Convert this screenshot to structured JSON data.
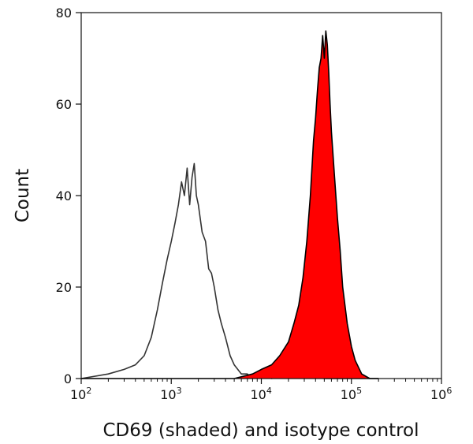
{
  "chart_data": {
    "type": "area",
    "title": "",
    "xlabel": "CD69 (shaded) and isotype control",
    "ylabel": "Count",
    "xscale": "log",
    "xlim": [
      100,
      1000000
    ],
    "ylim": [
      0,
      80
    ],
    "grid": false,
    "x_ticks": [
      {
        "value": 100,
        "base": "10",
        "exp": "2"
      },
      {
        "value": 1000,
        "base": "10",
        "exp": "3"
      },
      {
        "value": 10000,
        "base": "10",
        "exp": "4"
      },
      {
        "value": 100000,
        "base": "10",
        "exp": "5"
      },
      {
        "value": 1000000,
        "base": "10",
        "exp": "6"
      }
    ],
    "y_ticks": [
      {
        "value": 0,
        "label": "0"
      },
      {
        "value": 20,
        "label": "20"
      },
      {
        "value": 40,
        "label": "40"
      },
      {
        "value": 60,
        "label": "60"
      },
      {
        "value": 80,
        "label": "80"
      }
    ],
    "series": [
      {
        "style": "outline",
        "color": "#333333",
        "x": [
          100,
          200,
          300,
          400,
          500,
          600,
          700,
          800,
          900,
          1000,
          1100,
          1200,
          1300,
          1400,
          1500,
          1600,
          1700,
          1800,
          1900,
          2000,
          2200,
          2400,
          2600,
          2800,
          3000,
          3300,
          3600,
          4000,
          4500,
          5000,
          6000,
          7000,
          8000,
          10000,
          13000,
          20000,
          50000,
          100000,
          200000
        ],
        "y": [
          0,
          1,
          2,
          3,
          5,
          9,
          15,
          21,
          26,
          30,
          34,
          38,
          43,
          40,
          46,
          38,
          44,
          47,
          40,
          38,
          32,
          30,
          24,
          23,
          20,
          15,
          12,
          9,
          5,
          3,
          1,
          1,
          0,
          1,
          0,
          1,
          0,
          0,
          0
        ]
      },
      {
        "style": "filled",
        "color": "#ff0000",
        "x": [
          100,
          1000,
          3000,
          5000,
          8000,
          10000,
          13000,
          16000,
          20000,
          23000,
          26000,
          29000,
          32000,
          35000,
          38000,
          40000,
          42000,
          44000,
          46000,
          48000,
          50000,
          52000,
          54000,
          56000,
          58000,
          60000,
          65000,
          70000,
          75000,
          80000,
          90000,
          100000,
          110000,
          130000,
          160000,
          200000
        ],
        "y": [
          0,
          0,
          0,
          0,
          1,
          2,
          3,
          5,
          8,
          12,
          16,
          22,
          30,
          40,
          52,
          57,
          63,
          68,
          70,
          75,
          70,
          76,
          73,
          67,
          60,
          54,
          44,
          35,
          28,
          20,
          12,
          7,
          4,
          1,
          0,
          0
        ]
      }
    ]
  }
}
